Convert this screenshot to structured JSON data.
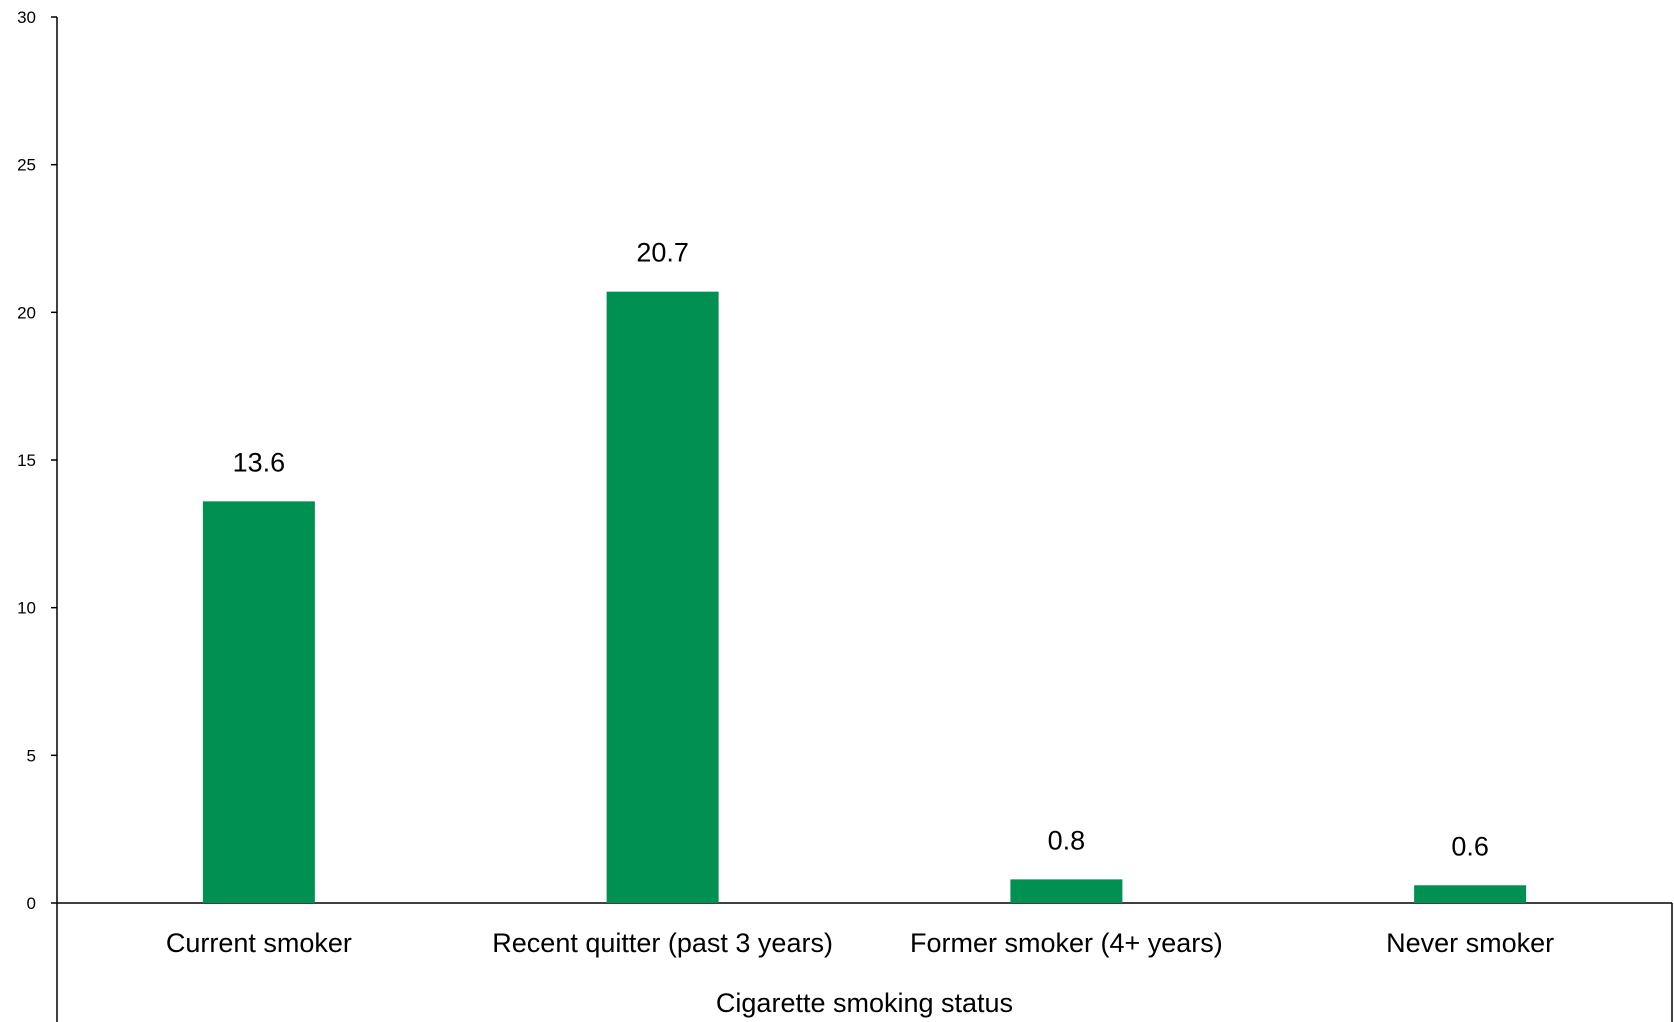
{
  "chart_data": {
    "type": "bar",
    "categories": [
      "Current smoker",
      "Recent quitter (past 3 years)",
      "Former smoker (4+ years)",
      "Never smoker"
    ],
    "values": [
      13.6,
      20.7,
      0.8,
      0.6
    ],
    "data_labels": [
      "13.6",
      "20.7",
      "0.8",
      "0.6"
    ],
    "title": "",
    "xlabel": "Cigarette smoking status",
    "ylabel": "",
    "ylim": [
      0,
      30
    ],
    "yticks": [
      0,
      5,
      10,
      15,
      20,
      25,
      30
    ],
    "grid": false,
    "legend": "none",
    "bar_color": "#009051"
  }
}
